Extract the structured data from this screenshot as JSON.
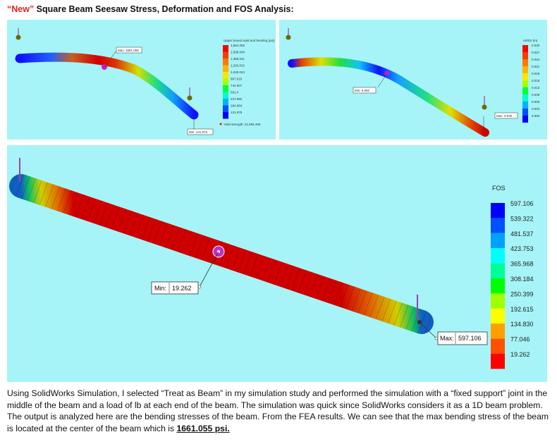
{
  "header": {
    "new_label": "“New”",
    "title": " Square Beam Seesaw Stress, Deformation and FOS Analysis:"
  },
  "stress_panel": {
    "legend_title": "Upper bound axial and bending (psi)",
    "legend_values": [
      "1,661.055",
      "1,508.049",
      "1,355.041",
      "1,202.032",
      "1,049.024",
      "897.016",
      "744.007",
      "591.0",
      "437.992",
      "284.984",
      "131.975"
    ],
    "legend_colors": [
      "#ff0000",
      "#ff3a00",
      "#ff7800",
      "#ffb400",
      "#ffe600",
      "#a8ff00",
      "#00ff3c",
      "#00ffc8",
      "#00b4ff",
      "#0050ff",
      "#0000ff"
    ],
    "yield_label": "Yield strength: 21,994.459",
    "max_tag": "Max: 1661.055",
    "min_tag": "Min: 131.975"
  },
  "deform_panel": {
    "legend_title": "URES (in)",
    "legend_values": [
      "0.030",
      "0.027",
      "0.024",
      "0.021",
      "0.018",
      "0.015",
      "0.012",
      "0.009",
      "0.006",
      "0.003",
      "0.000"
    ],
    "legend_colors": [
      "#ff0000",
      "#ff3a00",
      "#ff7800",
      "#ffb400",
      "#ffe600",
      "#a8ff00",
      "#00ff3c",
      "#00ffc8",
      "#00b4ff",
      "#0050ff",
      "#0000ff"
    ],
    "min_tag": "Min: 0.000",
    "max_tag": "Max: 0.030"
  },
  "fos_panel": {
    "legend_title": "FOS",
    "legend_values": [
      "597.106",
      "539.322",
      "481.537",
      "423.753",
      "365.968",
      "308.184",
      "250.399",
      "192.615",
      "134.830",
      "77.046",
      "19.262"
    ],
    "legend_colors": [
      "#0000ff",
      "#0050ff",
      "#00a0ff",
      "#00ffff",
      "#00ff96",
      "#00ff00",
      "#a0ff00",
      "#ffff00",
      "#ffa000",
      "#ff5000",
      "#ff0000"
    ],
    "min_label": "Min:",
    "min_value": "19.262",
    "max_label": "Max:",
    "max_value": "597.106"
  },
  "description": {
    "text_before": "Using SolidWorks Simulation, I selected “Treat as Beam” in my simulation study and performed the simulation with a “fixed support” joint in the middle of the beam and a load of lb at each end of the beam. The simulation was quick since SolidWorks considers it as a 1D beam problem. The output is analyzed here are the bending stresses of the beam. From the FEA results. We can see that the max bending stress of the beam is located at the center of the beam which is ",
    "highlight": "1661.055 psi."
  }
}
